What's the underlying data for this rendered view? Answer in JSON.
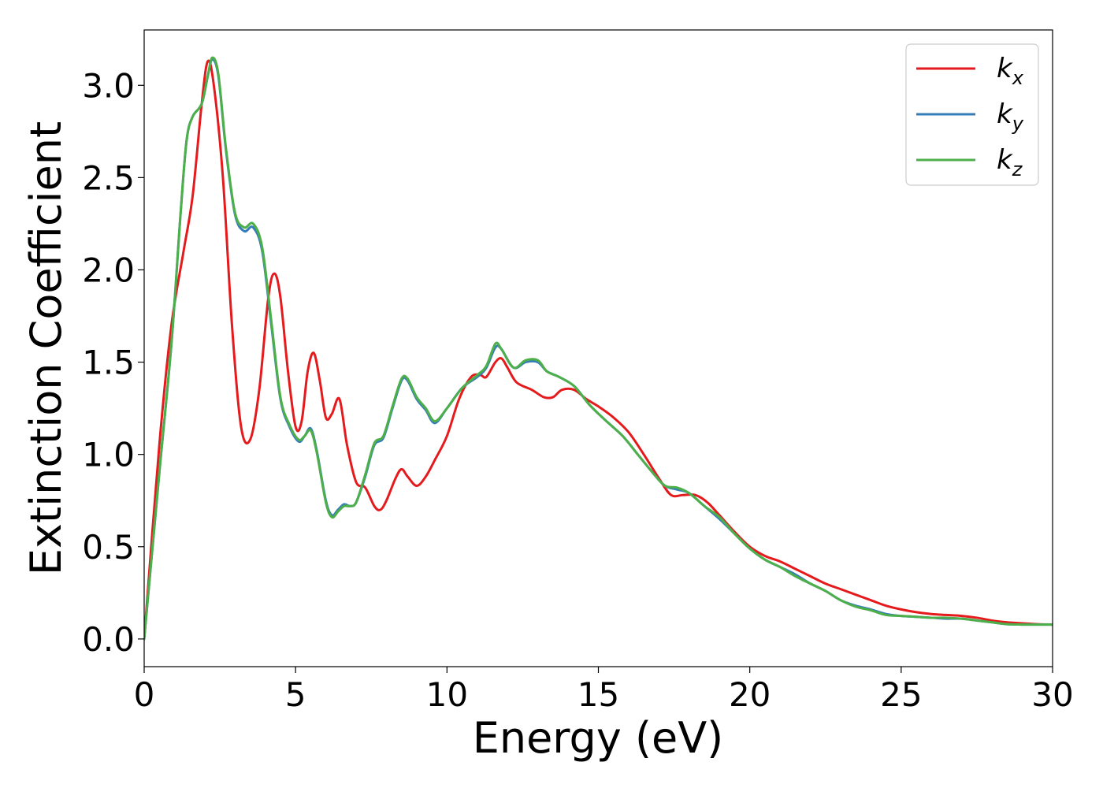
{
  "chart_data": {
    "type": "line",
    "xlabel": "Energy (eV)",
    "ylabel": "Extinction Coefficient",
    "xlim": [
      0,
      30
    ],
    "ylim": [
      -0.15,
      3.3
    ],
    "xticks": [
      0,
      5,
      10,
      15,
      20,
      25,
      30
    ],
    "xtick_labels": [
      "0",
      "5",
      "10",
      "15",
      "20",
      "25",
      "30"
    ],
    "yticks": [
      0.0,
      0.5,
      1.0,
      1.5,
      2.0,
      2.5,
      3.0
    ],
    "ytick_labels": [
      "0.0",
      "0.5",
      "1.0",
      "1.5",
      "2.0",
      "2.5",
      "3.0"
    ],
    "grid": false,
    "legend_position": "top-right",
    "series": [
      {
        "name": "k_x",
        "label_main": "k",
        "label_sub": "x",
        "color": "#e41a1c",
        "points": [
          [
            0,
            0
          ],
          [
            0.5,
            1.05
          ],
          [
            0.9,
            1.7
          ],
          [
            1.3,
            2.1
          ],
          [
            1.6,
            2.4
          ],
          [
            1.9,
            2.9
          ],
          [
            2.1,
            3.13
          ],
          [
            2.3,
            3.0
          ],
          [
            2.6,
            2.5
          ],
          [
            2.9,
            1.7
          ],
          [
            3.2,
            1.15
          ],
          [
            3.5,
            1.08
          ],
          [
            3.8,
            1.35
          ],
          [
            4.1,
            1.85
          ],
          [
            4.3,
            1.98
          ],
          [
            4.5,
            1.85
          ],
          [
            4.75,
            1.45
          ],
          [
            5.0,
            1.15
          ],
          [
            5.2,
            1.18
          ],
          [
            5.4,
            1.45
          ],
          [
            5.6,
            1.55
          ],
          [
            5.8,
            1.4
          ],
          [
            6.0,
            1.2
          ],
          [
            6.2,
            1.22
          ],
          [
            6.45,
            1.3
          ],
          [
            6.7,
            1.05
          ],
          [
            7.0,
            0.85
          ],
          [
            7.3,
            0.82
          ],
          [
            7.6,
            0.72
          ],
          [
            7.8,
            0.7
          ],
          [
            8.0,
            0.75
          ],
          [
            8.3,
            0.87
          ],
          [
            8.5,
            0.92
          ],
          [
            8.7,
            0.88
          ],
          [
            9.0,
            0.83
          ],
          [
            9.3,
            0.88
          ],
          [
            9.6,
            0.97
          ],
          [
            10.0,
            1.1
          ],
          [
            10.4,
            1.3
          ],
          [
            10.8,
            1.42
          ],
          [
            11.1,
            1.43
          ],
          [
            11.3,
            1.42
          ],
          [
            11.6,
            1.5
          ],
          [
            11.8,
            1.52
          ],
          [
            12.0,
            1.47
          ],
          [
            12.3,
            1.39
          ],
          [
            12.8,
            1.35
          ],
          [
            13.2,
            1.31
          ],
          [
            13.5,
            1.31
          ],
          [
            13.8,
            1.35
          ],
          [
            14.2,
            1.35
          ],
          [
            14.6,
            1.3
          ],
          [
            15.0,
            1.26
          ],
          [
            15.5,
            1.2
          ],
          [
            16.0,
            1.12
          ],
          [
            16.5,
            1.0
          ],
          [
            17.0,
            0.87
          ],
          [
            17.4,
            0.78
          ],
          [
            17.8,
            0.78
          ],
          [
            18.2,
            0.78
          ],
          [
            18.6,
            0.74
          ],
          [
            19.0,
            0.67
          ],
          [
            19.5,
            0.58
          ],
          [
            20.0,
            0.5
          ],
          [
            20.5,
            0.45
          ],
          [
            21.0,
            0.42
          ],
          [
            21.5,
            0.38
          ],
          [
            22.0,
            0.34
          ],
          [
            22.5,
            0.3
          ],
          [
            23.0,
            0.27
          ],
          [
            23.5,
            0.24
          ],
          [
            24.0,
            0.21
          ],
          [
            24.5,
            0.18
          ],
          [
            25.0,
            0.16
          ],
          [
            25.5,
            0.145
          ],
          [
            26.0,
            0.135
          ],
          [
            26.5,
            0.13
          ],
          [
            27.0,
            0.125
          ],
          [
            27.5,
            0.115
          ],
          [
            28.0,
            0.1
          ],
          [
            28.5,
            0.09
          ],
          [
            29.0,
            0.085
          ],
          [
            29.5,
            0.08
          ],
          [
            30.0,
            0.078
          ]
        ]
      },
      {
        "name": "k_y",
        "label_main": "k",
        "label_sub": "y",
        "color": "#377eb8",
        "points": [
          [
            0,
            0
          ],
          [
            0.5,
            0.9
          ],
          [
            0.9,
            1.6
          ],
          [
            1.2,
            2.3
          ],
          [
            1.4,
            2.7
          ],
          [
            1.6,
            2.83
          ],
          [
            1.9,
            2.9
          ],
          [
            2.1,
            3.05
          ],
          [
            2.25,
            3.14
          ],
          [
            2.45,
            3.05
          ],
          [
            2.7,
            2.65
          ],
          [
            3.0,
            2.3
          ],
          [
            3.3,
            2.21
          ],
          [
            3.6,
            2.23
          ],
          [
            3.9,
            2.1
          ],
          [
            4.2,
            1.7
          ],
          [
            4.5,
            1.3
          ],
          [
            4.8,
            1.15
          ],
          [
            5.1,
            1.07
          ],
          [
            5.3,
            1.1
          ],
          [
            5.5,
            1.14
          ],
          [
            5.7,
            1.02
          ],
          [
            6.0,
            0.75
          ],
          [
            6.2,
            0.67
          ],
          [
            6.4,
            0.7
          ],
          [
            6.6,
            0.73
          ],
          [
            6.8,
            0.72
          ],
          [
            7.0,
            0.74
          ],
          [
            7.3,
            0.88
          ],
          [
            7.6,
            1.05
          ],
          [
            7.9,
            1.09
          ],
          [
            8.2,
            1.25
          ],
          [
            8.5,
            1.4
          ],
          [
            8.7,
            1.4
          ],
          [
            9.0,
            1.3
          ],
          [
            9.3,
            1.24
          ],
          [
            9.6,
            1.17
          ],
          [
            10.0,
            1.25
          ],
          [
            10.5,
            1.36
          ],
          [
            11.0,
            1.42
          ],
          [
            11.3,
            1.47
          ],
          [
            11.6,
            1.58
          ],
          [
            11.8,
            1.57
          ],
          [
            12.2,
            1.47
          ],
          [
            12.6,
            1.5
          ],
          [
            13.0,
            1.5
          ],
          [
            13.3,
            1.45
          ],
          [
            13.7,
            1.42
          ],
          [
            14.2,
            1.37
          ],
          [
            14.7,
            1.27
          ],
          [
            15.2,
            1.19
          ],
          [
            15.8,
            1.1
          ],
          [
            16.3,
            1.0
          ],
          [
            16.8,
            0.9
          ],
          [
            17.2,
            0.83
          ],
          [
            17.6,
            0.81
          ],
          [
            18.0,
            0.79
          ],
          [
            18.5,
            0.72
          ],
          [
            19.0,
            0.65
          ],
          [
            19.5,
            0.57
          ],
          [
            20.0,
            0.49
          ],
          [
            20.5,
            0.43
          ],
          [
            21.0,
            0.39
          ],
          [
            21.5,
            0.35
          ],
          [
            22.0,
            0.3
          ],
          [
            22.5,
            0.26
          ],
          [
            23.0,
            0.21
          ],
          [
            23.5,
            0.18
          ],
          [
            24.0,
            0.16
          ],
          [
            24.5,
            0.135
          ],
          [
            25.0,
            0.125
          ],
          [
            25.5,
            0.12
          ],
          [
            26.0,
            0.115
          ],
          [
            26.5,
            0.11
          ],
          [
            27.0,
            0.11
          ],
          [
            27.5,
            0.1
          ],
          [
            28.0,
            0.09
          ],
          [
            28.5,
            0.08
          ],
          [
            29.0,
            0.078
          ],
          [
            29.5,
            0.078
          ],
          [
            30.0,
            0.078
          ]
        ]
      },
      {
        "name": "k_z",
        "label_main": "k",
        "label_sub": "z",
        "color": "#4daf4a",
        "points": [
          [
            0,
            0
          ],
          [
            0.5,
            0.9
          ],
          [
            0.9,
            1.6
          ],
          [
            1.2,
            2.3
          ],
          [
            1.4,
            2.7
          ],
          [
            1.6,
            2.83
          ],
          [
            1.9,
            2.9
          ],
          [
            2.1,
            3.05
          ],
          [
            2.25,
            3.15
          ],
          [
            2.45,
            3.06
          ],
          [
            2.7,
            2.66
          ],
          [
            3.0,
            2.31
          ],
          [
            3.3,
            2.23
          ],
          [
            3.6,
            2.25
          ],
          [
            3.9,
            2.12
          ],
          [
            4.2,
            1.72
          ],
          [
            4.5,
            1.31
          ],
          [
            4.8,
            1.16
          ],
          [
            5.1,
            1.08
          ],
          [
            5.3,
            1.1
          ],
          [
            5.5,
            1.13
          ],
          [
            5.7,
            1.01
          ],
          [
            6.0,
            0.74
          ],
          [
            6.2,
            0.66
          ],
          [
            6.4,
            0.69
          ],
          [
            6.6,
            0.72
          ],
          [
            6.8,
            0.72
          ],
          [
            7.0,
            0.74
          ],
          [
            7.3,
            0.89
          ],
          [
            7.6,
            1.06
          ],
          [
            7.9,
            1.1
          ],
          [
            8.2,
            1.26
          ],
          [
            8.5,
            1.41
          ],
          [
            8.7,
            1.41
          ],
          [
            9.0,
            1.31
          ],
          [
            9.3,
            1.25
          ],
          [
            9.6,
            1.18
          ],
          [
            10.0,
            1.25
          ],
          [
            10.5,
            1.36
          ],
          [
            11.0,
            1.43
          ],
          [
            11.3,
            1.48
          ],
          [
            11.6,
            1.6
          ],
          [
            11.8,
            1.57
          ],
          [
            12.2,
            1.47
          ],
          [
            12.6,
            1.51
          ],
          [
            13.0,
            1.51
          ],
          [
            13.3,
            1.45
          ],
          [
            13.7,
            1.42
          ],
          [
            14.2,
            1.37
          ],
          [
            14.7,
            1.27
          ],
          [
            15.2,
            1.19
          ],
          [
            15.8,
            1.1
          ],
          [
            16.3,
            1.0
          ],
          [
            16.8,
            0.9
          ],
          [
            17.2,
            0.83
          ],
          [
            17.6,
            0.82
          ],
          [
            18.0,
            0.79
          ],
          [
            18.5,
            0.72
          ],
          [
            19.0,
            0.66
          ],
          [
            19.5,
            0.57
          ],
          [
            20.0,
            0.49
          ],
          [
            20.5,
            0.43
          ],
          [
            21.0,
            0.39
          ],
          [
            21.5,
            0.34
          ],
          [
            22.0,
            0.3
          ],
          [
            22.5,
            0.26
          ],
          [
            23.0,
            0.21
          ],
          [
            23.5,
            0.175
          ],
          [
            24.0,
            0.155
          ],
          [
            24.5,
            0.13
          ],
          [
            25.0,
            0.125
          ],
          [
            25.5,
            0.12
          ],
          [
            26.0,
            0.115
          ],
          [
            26.5,
            0.115
          ],
          [
            27.0,
            0.11
          ],
          [
            27.5,
            0.1
          ],
          [
            28.0,
            0.09
          ],
          [
            28.5,
            0.08
          ],
          [
            29.0,
            0.078
          ],
          [
            29.5,
            0.078
          ],
          [
            30.0,
            0.078
          ]
        ]
      }
    ]
  }
}
